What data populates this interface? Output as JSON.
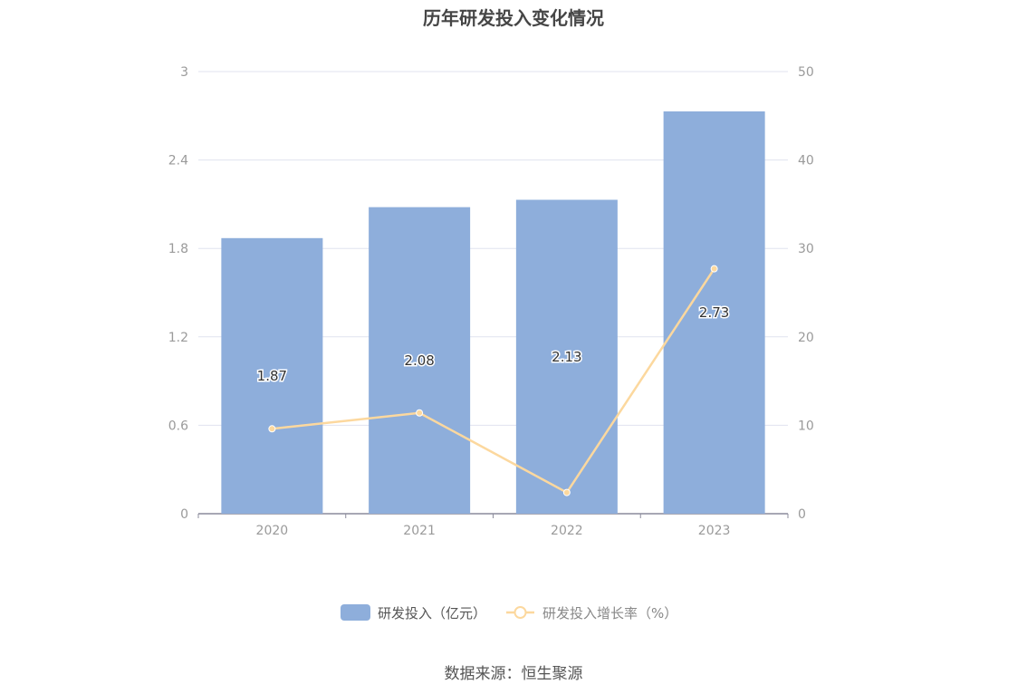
{
  "chart_data": {
    "type": "bar",
    "title": "历年研发投入变化情况",
    "categories": [
      "2020",
      "2021",
      "2022",
      "2023"
    ],
    "series": [
      {
        "name": "研发投入（亿元）",
        "type": "bar",
        "axis": "left",
        "values": [
          1.87,
          2.08,
          2.13,
          2.73
        ],
        "labels": [
          "1.87",
          "2.08",
          "2.13",
          "2.73"
        ],
        "color": "#8eaedb"
      },
      {
        "name": "研发投入增长率（%）",
        "type": "line",
        "axis": "right",
        "values": [
          9.6,
          11.4,
          2.4,
          27.7
        ],
        "color": "#fcd89e"
      }
    ],
    "y_left": {
      "ylim": [
        0,
        3
      ],
      "ticks": [
        "0",
        "0.6",
        "1.2",
        "1.8",
        "2.4",
        "3"
      ],
      "tick_values": [
        0,
        0.6,
        1.2,
        1.8,
        2.4,
        3
      ]
    },
    "y_right": {
      "ylim": [
        0,
        50
      ],
      "ticks": [
        "0",
        "10",
        "20",
        "30",
        "40",
        "50"
      ],
      "tick_values": [
        0,
        10,
        20,
        30,
        40,
        50
      ]
    },
    "grid": true,
    "legend_position": "bottom-center"
  },
  "source": "数据来源：恒生聚源",
  "colors": {
    "bar": "#8eaedb",
    "line": "#fcd89e",
    "grid": "#e0e3ef",
    "axis": "#8c8c9c",
    "tick_text": "#9a9a9a",
    "label_text": "#333333"
  }
}
